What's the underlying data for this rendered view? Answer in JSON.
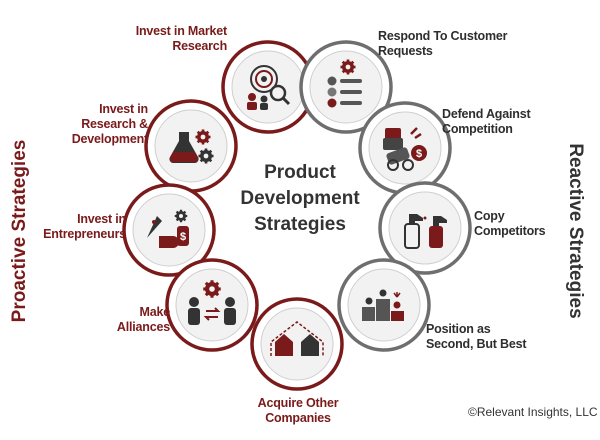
{
  "title_lines": [
    "Product",
    "Development",
    "Strategies"
  ],
  "side_labels": {
    "proactive": "Proactive Strategies",
    "reactive": "Reactive Strategies"
  },
  "proactive_items": [
    {
      "lines": [
        "Invest in Market",
        "Research"
      ],
      "icon": "market-research-icon"
    },
    {
      "lines": [
        "Invest in",
        "Research &",
        "Development"
      ],
      "icon": "lab-gears-icon"
    },
    {
      "lines": [
        "Invest in",
        "Entrepreneurs"
      ],
      "icon": "rocket-money-icon"
    },
    {
      "lines": [
        "Make",
        "Alliances"
      ],
      "icon": "handshake-people-icon"
    },
    {
      "lines": [
        "Acquire Other",
        "Companies"
      ],
      "icon": "merging-houses-icon"
    }
  ],
  "reactive_items": [
    {
      "lines": [
        "Respond To Customer",
        "Requests"
      ],
      "icon": "feedback-smileys-icon"
    },
    {
      "lines": [
        "Defend Against",
        "Competition"
      ],
      "icon": "defense-cannon-icon"
    },
    {
      "lines": [
        "Copy",
        "Competitors"
      ],
      "icon": "spray-bottles-icon"
    },
    {
      "lines": [
        "Position as",
        "Second, But Best"
      ],
      "icon": "podium-icon"
    }
  ],
  "copyright": "©Relevant Insights, LLC",
  "colors": {
    "proactive": "#7a1a1a",
    "reactive": "#6e6e6e",
    "inner_fill": "#f2f2f2",
    "text_dark": "#2e2e2e"
  }
}
